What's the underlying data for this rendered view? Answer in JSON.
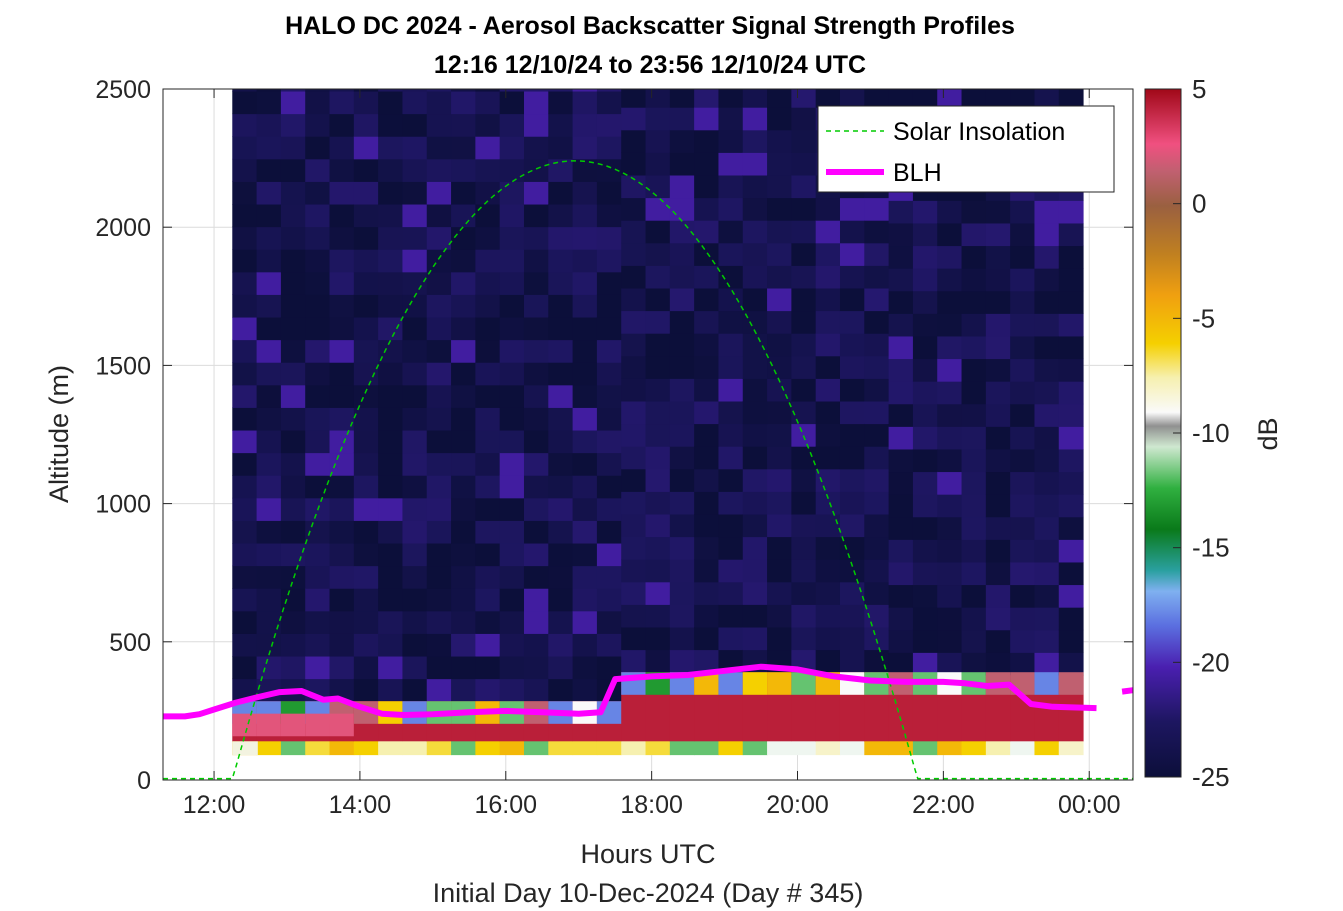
{
  "chart_data": {
    "type": "heatmap",
    "title": "HALO DC 2024 - Aerosol Backscatter Signal Strength Profiles",
    "subtitle": "12:16 12/10/24 to 23:56 12/10/24  UTC",
    "xlabel": "Hours UTC",
    "ylabel": "Altitude (m)",
    "footer": "Initial Day 10-Dec-2024 (Day # 345)",
    "xlim": [
      11.3,
      24.6
    ],
    "ylim": [
      0,
      2500
    ],
    "x_ticks": [
      12,
      14,
      16,
      18,
      20,
      22,
      24
    ],
    "x_tick_labels": [
      "12:00",
      "14:00",
      "16:00",
      "18:00",
      "20:00",
      "22:00",
      "00:00"
    ],
    "y_ticks": [
      0,
      500,
      1000,
      1500,
      2000,
      2500
    ],
    "y_tick_labels": [
      "0",
      "500",
      "1000",
      "1500",
      "2000",
      "2500"
    ],
    "grid": true,
    "legend_position": "top-right",
    "legend": [
      {
        "label": "Solar Insolation",
        "color": "#00cc00",
        "style": "dashed"
      },
      {
        "label": "BLH",
        "color": "#ff00ff",
        "style": "solid"
      }
    ],
    "colorbar": {
      "label": "dB",
      "range": [
        -25,
        5
      ],
      "ticks": [
        5,
        0,
        -5,
        -10,
        -15,
        -20,
        -25
      ],
      "tick_labels": [
        "5",
        "0",
        "-5",
        "-10",
        "-15",
        "-20",
        "-25"
      ]
    },
    "heatmap": {
      "x_start": 12.25,
      "time_step_h": 0.3333,
      "columns": 35,
      "alt_top": 2500,
      "low_band": [
        {
          "alt": [
            90,
            140
          ],
          "label": "near-surface cells",
          "db_range": [
            -13,
            -5
          ]
        },
        {
          "alt": [
            140,
            380
          ],
          "label": "boundary layer",
          "db": 4
        }
      ],
      "background_db": -24
    },
    "solar_insolation": {
      "x": [
        11.3,
        12.25,
        13.0,
        14.0,
        15.0,
        16.0,
        17.0,
        18.0,
        19.0,
        20.0,
        21.0,
        21.65,
        24.6
      ],
      "y": [
        5,
        5,
        700,
        1460,
        1920,
        2180,
        2240,
        2180,
        1920,
        1460,
        700,
        5,
        5
      ]
    },
    "blh": [
      {
        "x": [
          11.3,
          11.6,
          11.8,
          12.0,
          12.3,
          12.6,
          12.9,
          13.2,
          13.5,
          13.7,
          14.0,
          14.3,
          14.6,
          15.0,
          15.5,
          16.0,
          16.5,
          17.0,
          17.3,
          17.5,
          18.0,
          18.5,
          19.0,
          19.5,
          20.0,
          20.5,
          21.0,
          21.5,
          22.0,
          22.3,
          22.6,
          22.9,
          23.2,
          23.5,
          24.1
        ],
        "y": [
          230,
          230,
          238,
          255,
          280,
          300,
          318,
          322,
          290,
          295,
          265,
          240,
          235,
          238,
          245,
          250,
          245,
          240,
          245,
          365,
          375,
          380,
          395,
          410,
          400,
          375,
          360,
          355,
          355,
          350,
          340,
          345,
          275,
          265,
          260
        ]
      },
      {
        "x": [
          24.45,
          24.6
        ],
        "y": [
          320,
          325
        ]
      }
    ]
  }
}
